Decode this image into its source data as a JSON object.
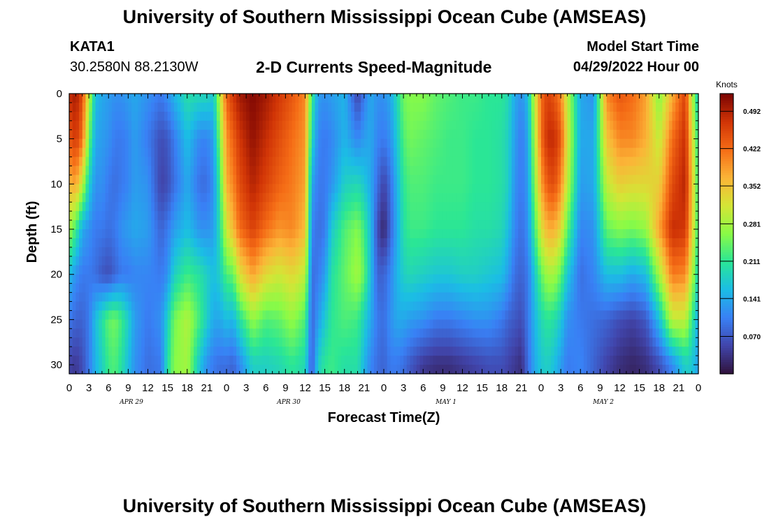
{
  "header": {
    "title": "University of Southern Mississippi Ocean Cube (AMSEAS)",
    "station": "KATA1",
    "coords": "30.2580N  88.2130W",
    "subtitle": "2-D Currents Speed-Magnitude",
    "start_label": "Model Start Time",
    "start_value": "04/29/2022 Hour 00"
  },
  "footer_title": "University of Southern Mississippi Ocean Cube (AMSEAS)",
  "chart_data": {
    "type": "heatmap",
    "title": "2-D Currents Speed-Magnitude",
    "xlabel": "Forecast Time(Z)",
    "ylabel": "Depth (ft)",
    "x_range_hours": [
      0,
      96
    ],
    "x_ticks": [
      "0",
      "3",
      "6",
      "9",
      "12",
      "15",
      "18",
      "21",
      "0",
      "3",
      "6",
      "9",
      "12",
      "15",
      "18",
      "21",
      "0",
      "3",
      "6",
      "9",
      "12",
      "15",
      "18",
      "21",
      "0",
      "3",
      "6",
      "9",
      "12",
      "15",
      "18",
      "21",
      "0"
    ],
    "day_labels": [
      "APR 29",
      "APR 30",
      "MAY 1",
      "MAY 2"
    ],
    "y_ticks": [
      "0",
      "5",
      "10",
      "15",
      "20",
      "25",
      "30"
    ],
    "y_range_ft": [
      0,
      31
    ],
    "colorbar": {
      "unit": "Knots",
      "min": 0.0,
      "max": 0.525,
      "ticks": [
        "0.492",
        "0.422",
        "0.352",
        "0.281",
        "0.211",
        "0.141",
        "0.070"
      ],
      "tick_values": [
        0.492,
        0.422,
        0.352,
        0.281,
        0.211,
        0.141,
        0.07
      ]
    },
    "profile_hours": [
      0,
      1,
      2,
      3,
      4,
      5,
      6,
      7,
      8,
      9,
      10,
      12,
      14,
      15,
      16,
      18,
      20,
      21,
      22,
      23,
      24,
      25,
      26,
      28,
      30,
      32,
      34,
      36,
      37,
      38,
      39,
      40,
      42,
      44,
      45,
      46,
      47,
      48,
      49,
      50,
      51,
      52,
      54,
      56,
      58,
      60,
      62,
      64,
      66,
      67,
      68,
      69,
      70,
      71,
      72,
      73,
      74,
      75,
      76,
      78,
      80,
      82,
      84,
      86,
      88,
      90,
      92,
      94,
      95,
      96
    ],
    "profile_depths_ft": [
      0,
      5,
      10,
      15,
      20,
      25,
      30
    ],
    "speed_knots": [
      [
        0.48,
        0.44,
        0.36,
        0.28,
        0.16,
        0.1,
        0.05
      ],
      [
        0.5,
        0.47,
        0.38,
        0.22,
        0.12,
        0.08,
        0.04
      ],
      [
        0.45,
        0.42,
        0.3,
        0.14,
        0.1,
        0.08,
        0.06
      ],
      [
        0.3,
        0.25,
        0.18,
        0.12,
        0.1,
        0.1,
        0.1
      ],
      [
        0.16,
        0.14,
        0.12,
        0.1,
        0.09,
        0.16,
        0.15
      ],
      [
        0.14,
        0.13,
        0.12,
        0.1,
        0.07,
        0.2,
        0.18
      ],
      [
        0.13,
        0.12,
        0.1,
        0.09,
        0.06,
        0.24,
        0.22
      ],
      [
        0.12,
        0.1,
        0.09,
        0.1,
        0.08,
        0.25,
        0.23
      ],
      [
        0.12,
        0.1,
        0.1,
        0.12,
        0.1,
        0.22,
        0.2
      ],
      [
        0.13,
        0.11,
        0.11,
        0.13,
        0.1,
        0.18,
        0.16
      ],
      [
        0.14,
        0.13,
        0.13,
        0.14,
        0.11,
        0.13,
        0.12
      ],
      [
        0.12,
        0.1,
        0.12,
        0.13,
        0.11,
        0.1,
        0.09
      ],
      [
        0.1,
        0.06,
        0.05,
        0.08,
        0.1,
        0.12,
        0.1
      ],
      [
        0.12,
        0.07,
        0.06,
        0.1,
        0.12,
        0.18,
        0.2
      ],
      [
        0.15,
        0.1,
        0.09,
        0.13,
        0.18,
        0.25,
        0.26
      ],
      [
        0.2,
        0.16,
        0.14,
        0.16,
        0.22,
        0.29,
        0.28
      ],
      [
        0.19,
        0.11,
        0.09,
        0.12,
        0.2,
        0.22,
        0.16
      ],
      [
        0.19,
        0.11,
        0.09,
        0.12,
        0.18,
        0.18,
        0.12
      ],
      [
        0.17,
        0.13,
        0.12,
        0.13,
        0.16,
        0.14,
        0.1
      ],
      [
        0.3,
        0.26,
        0.22,
        0.2,
        0.18,
        0.14,
        0.09
      ],
      [
        0.43,
        0.39,
        0.37,
        0.31,
        0.23,
        0.16,
        0.09
      ],
      [
        0.47,
        0.43,
        0.4,
        0.36,
        0.24,
        0.15,
        0.08
      ],
      [
        0.5,
        0.47,
        0.45,
        0.42,
        0.32,
        0.2,
        0.11
      ],
      [
        0.52,
        0.51,
        0.49,
        0.46,
        0.38,
        0.27,
        0.18
      ],
      [
        0.5,
        0.48,
        0.46,
        0.42,
        0.33,
        0.23,
        0.18
      ],
      [
        0.47,
        0.45,
        0.43,
        0.39,
        0.31,
        0.24,
        0.19
      ],
      [
        0.44,
        0.42,
        0.41,
        0.4,
        0.33,
        0.27,
        0.21
      ],
      [
        0.4,
        0.39,
        0.38,
        0.36,
        0.3,
        0.23,
        0.19
      ],
      [
        0.22,
        0.19,
        0.14,
        0.11,
        0.09,
        0.08,
        0.07
      ],
      [
        0.13,
        0.11,
        0.1,
        0.09,
        0.1,
        0.13,
        0.18
      ],
      [
        0.12,
        0.1,
        0.1,
        0.1,
        0.13,
        0.17,
        0.21
      ],
      [
        0.13,
        0.11,
        0.12,
        0.17,
        0.2,
        0.21,
        0.22
      ],
      [
        0.15,
        0.15,
        0.18,
        0.23,
        0.24,
        0.23,
        0.2
      ],
      [
        0.05,
        0.11,
        0.19,
        0.26,
        0.28,
        0.22,
        0.2
      ],
      [
        0.1,
        0.13,
        0.17,
        0.22,
        0.24,
        0.18,
        0.15
      ],
      [
        0.14,
        0.14,
        0.14,
        0.16,
        0.16,
        0.14,
        0.11
      ],
      [
        0.12,
        0.11,
        0.09,
        0.06,
        0.08,
        0.1,
        0.09
      ],
      [
        0.12,
        0.1,
        0.05,
        0.02,
        0.08,
        0.09,
        0.08
      ],
      [
        0.14,
        0.12,
        0.09,
        0.08,
        0.11,
        0.12,
        0.1
      ],
      [
        0.19,
        0.17,
        0.15,
        0.14,
        0.15,
        0.14,
        0.1
      ],
      [
        0.25,
        0.23,
        0.21,
        0.2,
        0.18,
        0.14,
        0.09
      ],
      [
        0.26,
        0.25,
        0.23,
        0.22,
        0.19,
        0.13,
        0.07
      ],
      [
        0.26,
        0.24,
        0.23,
        0.22,
        0.18,
        0.12,
        0.04
      ],
      [
        0.24,
        0.23,
        0.22,
        0.21,
        0.17,
        0.1,
        0.03
      ],
      [
        0.23,
        0.22,
        0.22,
        0.21,
        0.17,
        0.1,
        0.03
      ],
      [
        0.22,
        0.22,
        0.22,
        0.21,
        0.18,
        0.11,
        0.04
      ],
      [
        0.22,
        0.21,
        0.21,
        0.2,
        0.18,
        0.12,
        0.05
      ],
      [
        0.21,
        0.21,
        0.21,
        0.2,
        0.17,
        0.12,
        0.06
      ],
      [
        0.21,
        0.2,
        0.2,
        0.19,
        0.16,
        0.1,
        0.06
      ],
      [
        0.19,
        0.18,
        0.18,
        0.16,
        0.13,
        0.08,
        0.05
      ],
      [
        0.14,
        0.13,
        0.12,
        0.11,
        0.09,
        0.07,
        0.04
      ],
      [
        0.12,
        0.1,
        0.1,
        0.09,
        0.08,
        0.06,
        0.03
      ],
      [
        0.16,
        0.14,
        0.13,
        0.12,
        0.1,
        0.1,
        0.09
      ],
      [
        0.3,
        0.28,
        0.26,
        0.22,
        0.17,
        0.15,
        0.14
      ],
      [
        0.42,
        0.42,
        0.38,
        0.32,
        0.24,
        0.19,
        0.17
      ],
      [
        0.46,
        0.48,
        0.44,
        0.37,
        0.28,
        0.21,
        0.18
      ],
      [
        0.44,
        0.48,
        0.45,
        0.37,
        0.28,
        0.2,
        0.16
      ],
      [
        0.4,
        0.44,
        0.4,
        0.33,
        0.24,
        0.17,
        0.13
      ],
      [
        0.3,
        0.32,
        0.3,
        0.24,
        0.17,
        0.12,
        0.1
      ],
      [
        0.14,
        0.14,
        0.13,
        0.11,
        0.09,
        0.1,
        0.11
      ],
      [
        0.12,
        0.14,
        0.14,
        0.12,
        0.11,
        0.09,
        0.08
      ],
      [
        0.4,
        0.35,
        0.3,
        0.24,
        0.16,
        0.08,
        0.05
      ],
      [
        0.44,
        0.4,
        0.34,
        0.26,
        0.16,
        0.06,
        0.03
      ],
      [
        0.42,
        0.4,
        0.33,
        0.25,
        0.14,
        0.05,
        0.02
      ],
      [
        0.38,
        0.37,
        0.33,
        0.27,
        0.16,
        0.07,
        0.03
      ],
      [
        0.26,
        0.3,
        0.34,
        0.38,
        0.28,
        0.16,
        0.06
      ],
      [
        0.37,
        0.42,
        0.45,
        0.48,
        0.41,
        0.3,
        0.11
      ],
      [
        0.46,
        0.48,
        0.49,
        0.47,
        0.4,
        0.3,
        0.18
      ],
      [
        0.3,
        0.34,
        0.36,
        0.35,
        0.3,
        0.22,
        0.17
      ],
      [
        0.17,
        0.2,
        0.21,
        0.21,
        0.18,
        0.14,
        0.13
      ]
    ]
  }
}
